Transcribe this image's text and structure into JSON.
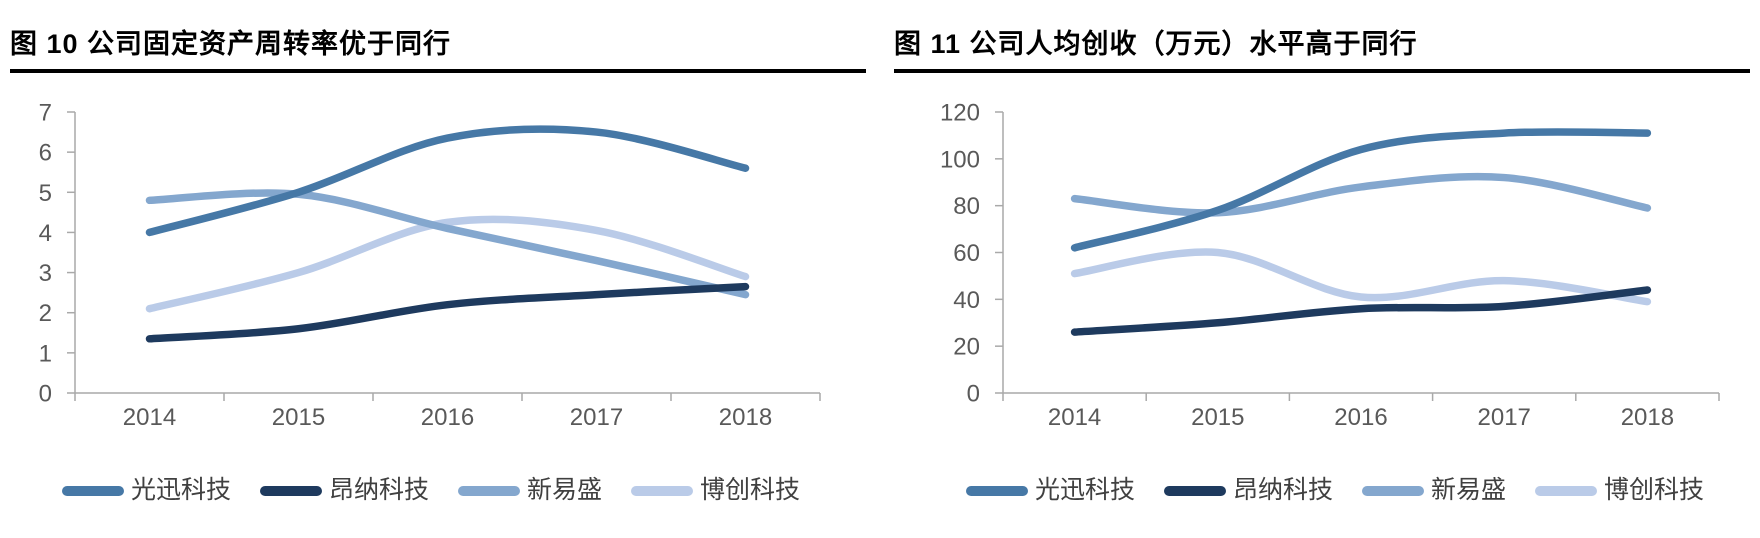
{
  "page": {
    "background": "#ffffff",
    "axis_color": "#a9a9a9",
    "tick_label_color": "#595959",
    "legend_label_color": "#404040",
    "title_color": "#000000"
  },
  "chart_data": [
    {
      "type": "line",
      "title": "图 10 公司固定资产周转率优于同行",
      "categories": [
        "2014",
        "2015",
        "2016",
        "2017",
        "2018"
      ],
      "series": [
        {
          "name": "光迅科技",
          "color": "#4678a6",
          "values": [
            4.0,
            5.0,
            6.35,
            6.5,
            5.6
          ]
        },
        {
          "name": "昂纳科技",
          "color": "#1e3a5e",
          "values": [
            1.35,
            1.6,
            2.2,
            2.45,
            2.65
          ]
        },
        {
          "name": "新易盛",
          "color": "#84a7ce",
          "values": [
            4.8,
            4.95,
            4.1,
            3.3,
            2.45
          ]
        },
        {
          "name": "博创科技",
          "color": "#bacbe8",
          "values": [
            2.1,
            3.0,
            4.25,
            4.05,
            2.9
          ]
        }
      ],
      "xlabel": "",
      "ylabel": "",
      "ylim": [
        0,
        7
      ],
      "ytick_step": 1,
      "grid": false,
      "legend_position": "bottom",
      "line_smooth": true,
      "draw_order": [
        3,
        2,
        0,
        1
      ]
    },
    {
      "type": "line",
      "title": "图 11 公司人均创收（万元）水平高于同行",
      "categories": [
        "2014",
        "2015",
        "2016",
        "2017",
        "2018"
      ],
      "series": [
        {
          "name": "光迅科技",
          "color": "#4678a6",
          "values": [
            62,
            78,
            104,
            111,
            111
          ]
        },
        {
          "name": "昂纳科技",
          "color": "#1e3a5e",
          "values": [
            26,
            30,
            36,
            37,
            44
          ]
        },
        {
          "name": "新易盛",
          "color": "#84a7ce",
          "values": [
            83,
            77,
            88,
            92,
            79
          ]
        },
        {
          "name": "博创科技",
          "color": "#bacbe8",
          "values": [
            51,
            60,
            41,
            48,
            39
          ]
        }
      ],
      "xlabel": "",
      "ylabel": "",
      "ylim": [
        0,
        120
      ],
      "ytick_step": 20,
      "grid": false,
      "legend_position": "bottom",
      "line_smooth": true,
      "draw_order": [
        3,
        2,
        0,
        1
      ]
    }
  ]
}
